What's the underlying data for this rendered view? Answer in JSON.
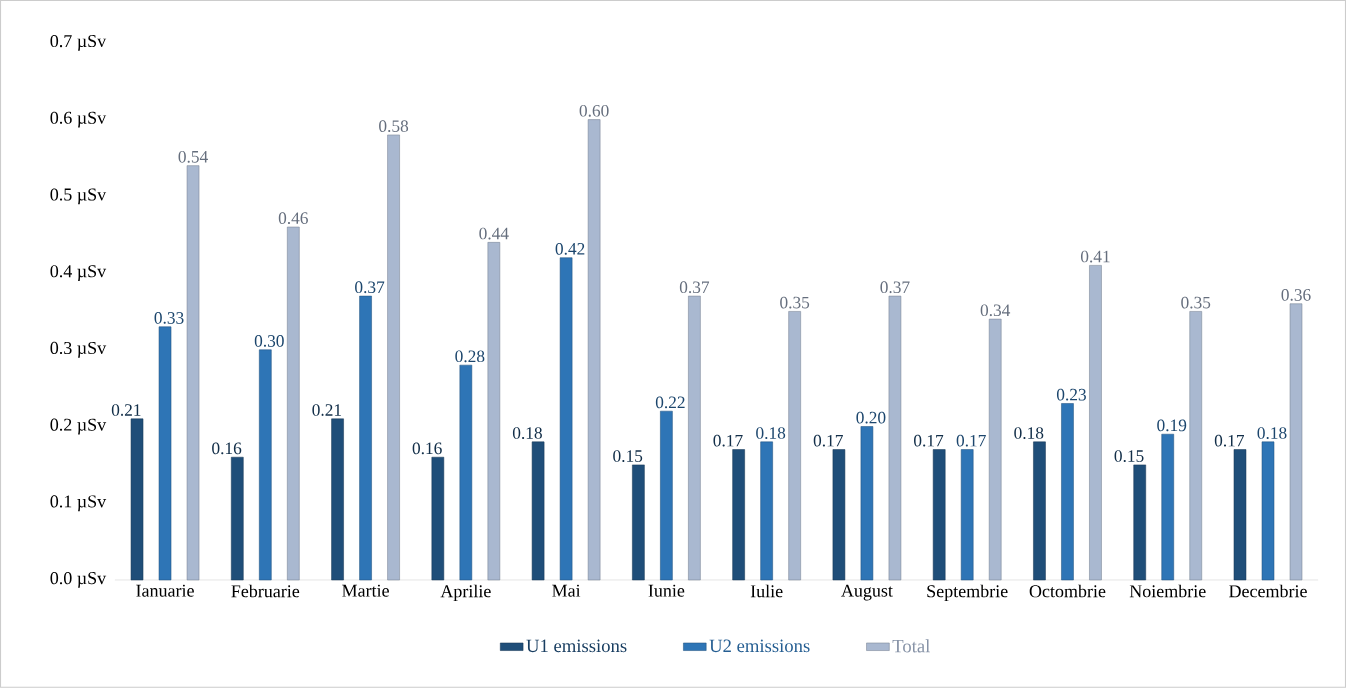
{
  "chart_data": {
    "type": "bar",
    "categories": [
      "Ianuarie",
      "Februarie",
      "Martie",
      "Aprilie",
      "Mai",
      "Iunie",
      "Iulie",
      "August",
      "Septembrie",
      "Octombrie",
      "Noiembrie",
      "Decembrie"
    ],
    "series": [
      {
        "name": "U1 emissions",
        "color": "#1f4e79",
        "values": [
          0.21,
          0.16,
          0.21,
          0.16,
          0.18,
          0.15,
          0.17,
          0.17,
          0.17,
          0.18,
          0.15,
          0.17
        ],
        "value_labels": [
          "0.21",
          "0.16",
          "0.21",
          "0.16",
          "0.18",
          "0.15",
          "0.17",
          "0.17",
          "0.17",
          "0.18",
          "0.15",
          "0.17"
        ]
      },
      {
        "name": "U2 emissions",
        "color": "#2e75b6",
        "values": [
          0.33,
          0.3,
          0.37,
          0.28,
          0.42,
          0.22,
          0.18,
          0.2,
          0.17,
          0.23,
          0.19,
          0.18
        ],
        "value_labels": [
          "0.33",
          "0.30",
          "0.37",
          "0.28",
          "0.42",
          "0.22",
          "0.18",
          "0.20",
          "0.17",
          "0.23",
          "0.19",
          "0.18"
        ]
      },
      {
        "name": "Total",
        "color": "#a9b8d0",
        "values": [
          0.54,
          0.46,
          0.58,
          0.44,
          0.6,
          0.37,
          0.35,
          0.37,
          0.34,
          0.41,
          0.35,
          0.36
        ],
        "value_labels": [
          "0.54",
          "0.46",
          "0.58",
          "0.44",
          "0.60",
          "0.37",
          "0.35",
          "0.37",
          "0.34",
          "0.41",
          "0.35",
          "0.36"
        ]
      }
    ],
    "ylim": [
      0,
      0.7
    ],
    "yticks": [
      {
        "value": 0,
        "label": "0.0 µSv"
      },
      {
        "value": 0.1,
        "label": "0.1 µSv"
      },
      {
        "value": 0.2,
        "label": "0.2 µSv"
      },
      {
        "value": 0.3,
        "label": "0.3 µSv"
      },
      {
        "value": 0.4,
        "label": "0.4 µSv"
      },
      {
        "value": 0.5,
        "label": "0.5 µSv"
      },
      {
        "value": 0.6,
        "label": "0.6 µSv"
      },
      {
        "value": 0.7,
        "label": "0.7 µSv"
      }
    ],
    "grid": false,
    "legend": "bottom"
  }
}
